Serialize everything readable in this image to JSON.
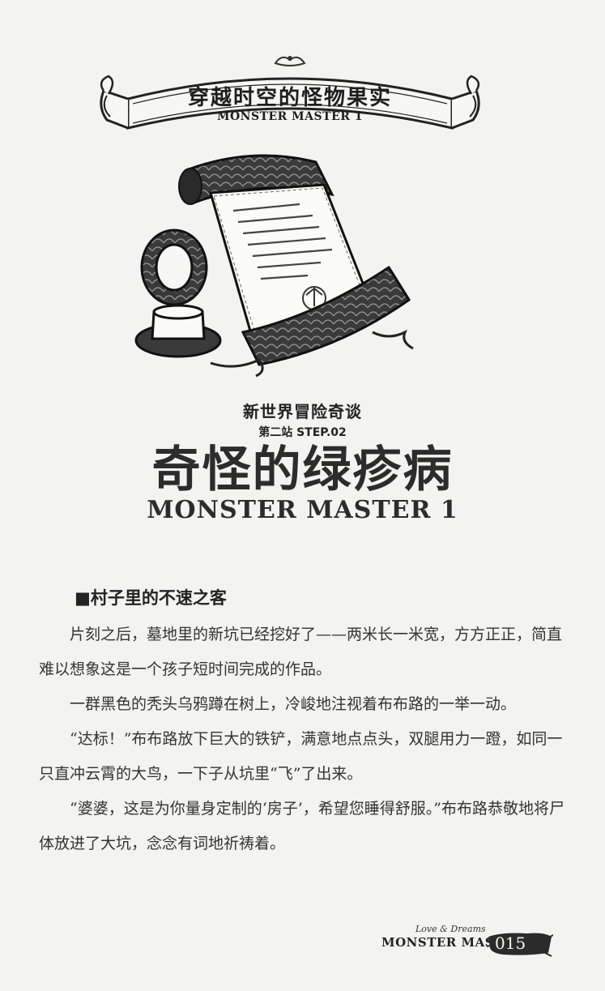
{
  "banner": {
    "title": "穿越时空的怪物果实",
    "subtitle": "MONSTER MASTER 1"
  },
  "illustration": {
    "icon": "scroll-with-hat-icon"
  },
  "header": {
    "series_title": "新世界冒险奇谈",
    "step_label": "第二站 STEP.02",
    "chapter_title": "奇怪的绿疹病",
    "chapter_subtitle": "MONSTER MASTER 1"
  },
  "section": {
    "heading": "■村子里的不速之客",
    "paragraphs": [
      "片刻之后，墓地里的新坑已经挖好了——两米长一米宽，方方正正，简直难以想象这是一个孩子短时间完成的作品。",
      "一群黑色的秃头乌鸦蹲在树上，冷峻地注视着布布路的一举一动。",
      "“达标！”布布路放下巨大的铁铲，满意地点点头，双腿用力一蹬，如同一只直冲云霄的大鸟，一下子从坑里“飞”了出来。",
      "“婆婆，这是为你量身定制的‘房子’，希望您睡得舒服。”布布路恭敬地将尸体放进了大坑，念念有词地祈祷着。"
    ]
  },
  "footer": {
    "tagline": "Love & Dreams",
    "brand": "MONSTER MASTER",
    "page_number": "015"
  }
}
